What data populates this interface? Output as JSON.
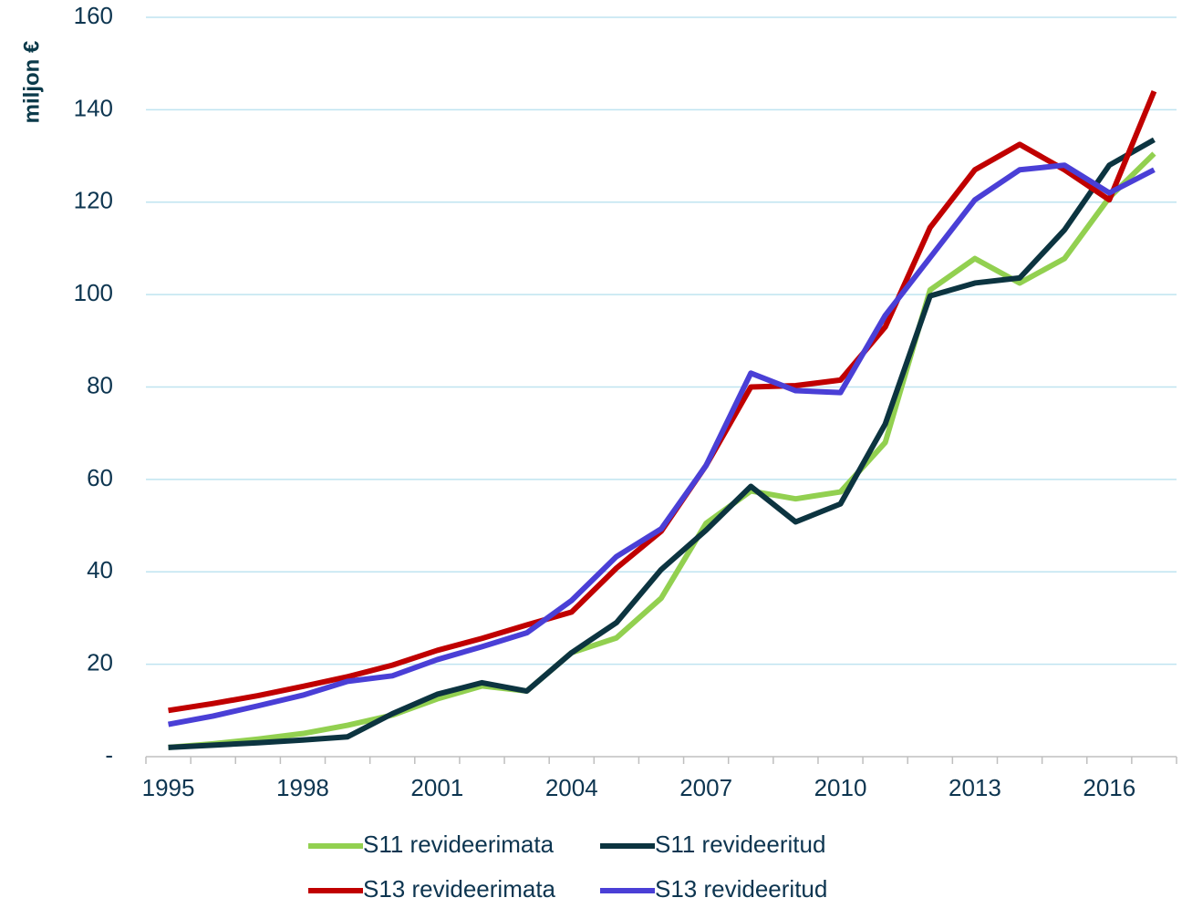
{
  "chart_data": {
    "type": "line",
    "y_label": "miljon €",
    "categories": [
      "1995",
      null,
      null,
      "1998",
      null,
      null,
      "2001",
      null,
      null,
      "2004",
      null,
      null,
      "2007",
      null,
      null,
      "2010",
      null,
      null,
      "2013",
      null,
      null,
      "2016",
      null
    ],
    "series": [
      {
        "name": "S11 revideerimata",
        "color": "#92d050",
        "values": [
          2,
          2.8,
          3.8,
          5,
          6.8,
          9,
          12.5,
          15.3,
          14.2,
          22.5,
          25.7,
          34.3,
          50.5,
          57.5,
          55.8,
          57.3,
          68,
          101,
          107.8,
          102.5,
          107.8,
          121,
          130.5
        ]
      },
      {
        "name": "S11 revideeritud",
        "color": "#0c3440",
        "values": [
          2,
          2.5,
          3,
          3.6,
          4.3,
          9.3,
          13.5,
          16,
          14.2,
          22.5,
          29,
          40.5,
          49,
          58.5,
          50.8,
          54.7,
          72,
          99.7,
          102.5,
          103.6,
          114,
          128,
          133.5
        ]
      },
      {
        "name": "S13 revideerimata",
        "color": "#c00000",
        "values": [
          10,
          11.5,
          13.2,
          15.2,
          17.3,
          19.8,
          23,
          25.6,
          28.5,
          31.3,
          40.8,
          48.8,
          63,
          80,
          80.3,
          81.5,
          93,
          114.5,
          127,
          132.5,
          127,
          120.5,
          144
        ]
      },
      {
        "name": "S13 revideeritud",
        "color": "#4a3fd6",
        "values": [
          7,
          8.8,
          11,
          13.3,
          16.3,
          17.5,
          21,
          23.8,
          26.8,
          33.8,
          43.3,
          49.3,
          63,
          83,
          79.2,
          78.8,
          95.5,
          108,
          120.5,
          127,
          128,
          122,
          127
        ]
      }
    ],
    "ylim": [
      0,
      160
    ],
    "yticks": [
      {
        "value": 0,
        "label": "-"
      },
      20,
      40,
      60,
      80,
      100,
      120,
      140,
      160
    ],
    "grid": true
  }
}
